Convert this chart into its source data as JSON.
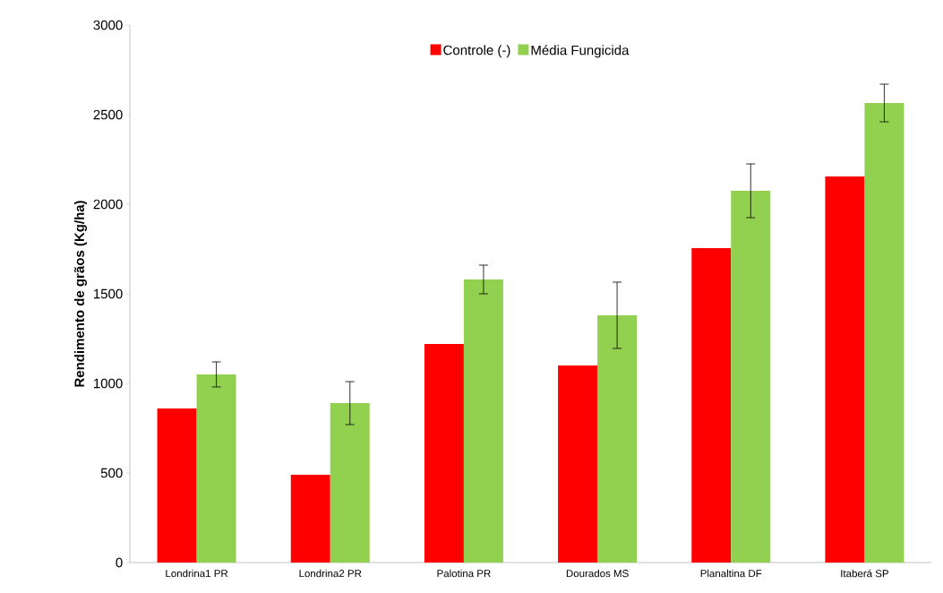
{
  "chart_data": {
    "type": "bar",
    "ylabel": "Rendimento de grãos (Kg/ha)",
    "categories": [
      "Londrina1 PR",
      "Londrina2 PR",
      "Palotina PR",
      "Dourados MS",
      "Planaltina DF",
      "Itaberá SP"
    ],
    "series": [
      {
        "name": "Controle (-)",
        "color": "#ff0000",
        "values": [
          860,
          490,
          1220,
          1100,
          1755,
          2155
        ]
      },
      {
        "name": "Média Fungicida",
        "color": "#92d050",
        "values": [
          1050,
          890,
          1580,
          1380,
          2075,
          2565
        ],
        "errors": [
          70,
          120,
          80,
          185,
          150,
          105
        ]
      }
    ],
    "ylim": [
      0,
      3000
    ],
    "yticks": [
      0,
      500,
      1000,
      1500,
      2000,
      2500,
      3000
    ],
    "grid": false,
    "legend": "top"
  }
}
